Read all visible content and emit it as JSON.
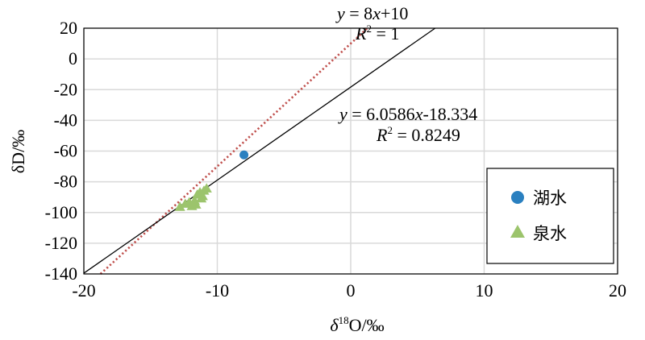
{
  "chart_data": {
    "type": "scatter",
    "title": "",
    "xlabel": {
      "symbol": "δ",
      "sup": "18",
      "rest": "O/‰"
    },
    "ylabel": "δD/‰",
    "xlim": [
      -20,
      20
    ],
    "ylim": [
      -140,
      20
    ],
    "x_ticks": [
      -20,
      -10,
      0,
      10,
      20
    ],
    "y_ticks": [
      20,
      0,
      -20,
      -40,
      -60,
      -80,
      -100,
      -120,
      -140
    ],
    "x_tick_labels": [
      "-20",
      "-10",
      "0",
      "10",
      "20"
    ],
    "y_tick_labels": [
      "20",
      "0",
      "-20",
      "-40",
      "-60",
      "-80",
      "-100",
      "-120",
      "-140"
    ],
    "grid": true,
    "legend_position": "lower-right",
    "series": [
      {
        "name": "湖水",
        "marker": "circle",
        "color": "#2a80c0",
        "points": [
          [
            -8.0,
            -62.5
          ]
        ]
      },
      {
        "name": "泉水",
        "marker": "triangle",
        "color": "#9cc46c",
        "points": [
          [
            -12.8,
            -96.5
          ],
          [
            -12.4,
            -94.5
          ],
          [
            -12.1,
            -93.5
          ],
          [
            -11.9,
            -96.0
          ],
          [
            -11.7,
            -92.5
          ],
          [
            -11.6,
            -95.0
          ],
          [
            -11.5,
            -88.5
          ],
          [
            -11.3,
            -87.0
          ],
          [
            -11.2,
            -91.0
          ],
          [
            -11.0,
            -86.0
          ],
          [
            -10.8,
            -84.5
          ],
          [
            -11.1,
            -89.5
          ]
        ]
      }
    ],
    "lines": [
      {
        "style": "dotted",
        "color": "#c0504d",
        "slope": 8,
        "intercept": 10,
        "equation": {
          "y": "y",
          "eq": " = 8",
          "x": "x",
          "rest": "+10"
        },
        "r2": {
          "r": "R",
          "sup": "2",
          "rest": " = 1"
        }
      },
      {
        "style": "solid",
        "color": "#000000",
        "slope": 6.0586,
        "intercept": -18.334,
        "equation": {
          "y": "y",
          "eq": " = 6.0586",
          "x": "x",
          "rest": "-18.334"
        },
        "r2": {
          "r": "R",
          "sup": "2",
          "rest": " = 0.8249"
        }
      }
    ]
  }
}
